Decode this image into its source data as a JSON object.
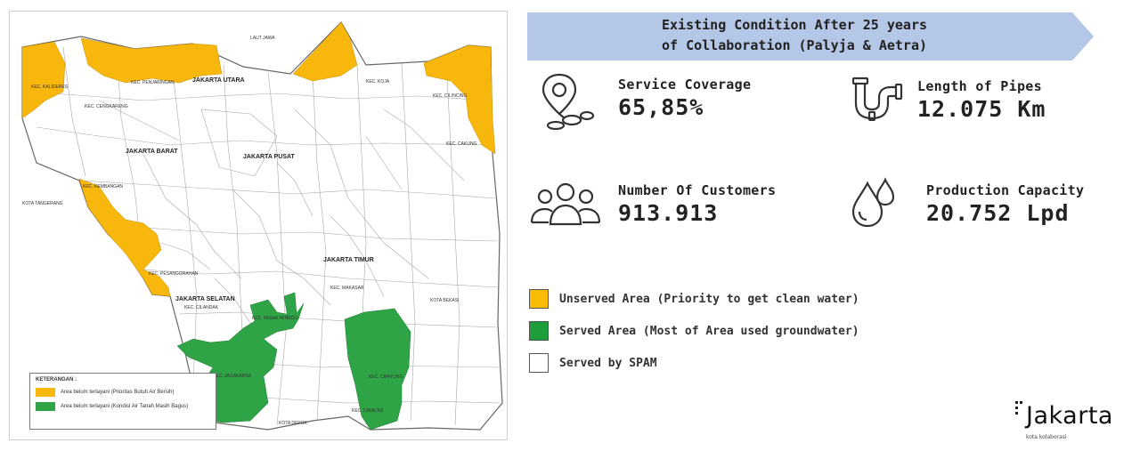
{
  "banner": {
    "line1": "Existing Condition After 25 years",
    "line2": "of Collaboration (Palyja & Aetra)",
    "color": "#b4c7e7"
  },
  "stats": {
    "service_coverage": {
      "label": "Service Coverage",
      "value": "65,85%",
      "icon": "location-pin-icon"
    },
    "length_of_pipes": {
      "label": "Length of Pipes",
      "value": "12.075 Km",
      "icon": "pipe-icon"
    },
    "customers": {
      "label": "Number Of Customers",
      "value": "913.913",
      "icon": "people-icon"
    },
    "production_capacity": {
      "label": "Production Capacity",
      "value": "20.752 Lpd",
      "icon": "water-drops-icon"
    }
  },
  "legend": {
    "unserved": {
      "label": "Unserved Area (Priority to get clean water)",
      "color": "#fbbc05"
    },
    "served": {
      "label": "Served Area (Most of Area used groundwater)",
      "color": "#1e9e3a"
    },
    "spam": {
      "label": "Served by SPAM",
      "color": "#ffffff"
    }
  },
  "map": {
    "colors": {
      "unserved": "#f8b70d",
      "served": "#2fa446",
      "lines": "#9a9a9a"
    },
    "legend_title": "KETERANGAN :",
    "legend_unserved": "Area belum terlayani (Prioritas Butuh Air Bersih)",
    "legend_served": "Area belum terlayani (Kondisi Air Tanah Masih Bagus)",
    "labels": {
      "utara": "JAKARTA UTARA",
      "barat": "JAKARTA BARAT",
      "pusat": "JAKARTA PUSAT",
      "timur": "JAKARTA TIMUR",
      "selatan": "JAKARTA SELATAN",
      "tangerang": "KOTA TANGERANG",
      "bekasi": "KOTA BEKASI",
      "depok": "KOTA DEPOK",
      "laut": "LAUT JAWA",
      "kalideres": "KEC. KALIDERES",
      "penjaringan": "KEC. PENJARINGAN",
      "cengkareng": "KEC. CENGKARENG",
      "kembangan": "KEC. KEMBANGAN",
      "cakung": "KEC. CAKUNG",
      "koja": "KEC. KOJA",
      "cilincing": "KEC. CILINCING",
      "jagakarsa": "KEC. JAGAKARSA",
      "cipayung": "KEC. CIPAYUNG",
      "ciracas": "KEC. CIRACAS",
      "pasarminggu": "KEC. PASAR MINGGU",
      "cilandak": "KEC. CILANDAK",
      "pesanggrahan": "KEC. PESANGGRAHAN",
      "makasar": "KEC. MAKASAR"
    }
  },
  "logo": {
    "word": "Jakarta",
    "tagline": "kota kolaborasi"
  }
}
